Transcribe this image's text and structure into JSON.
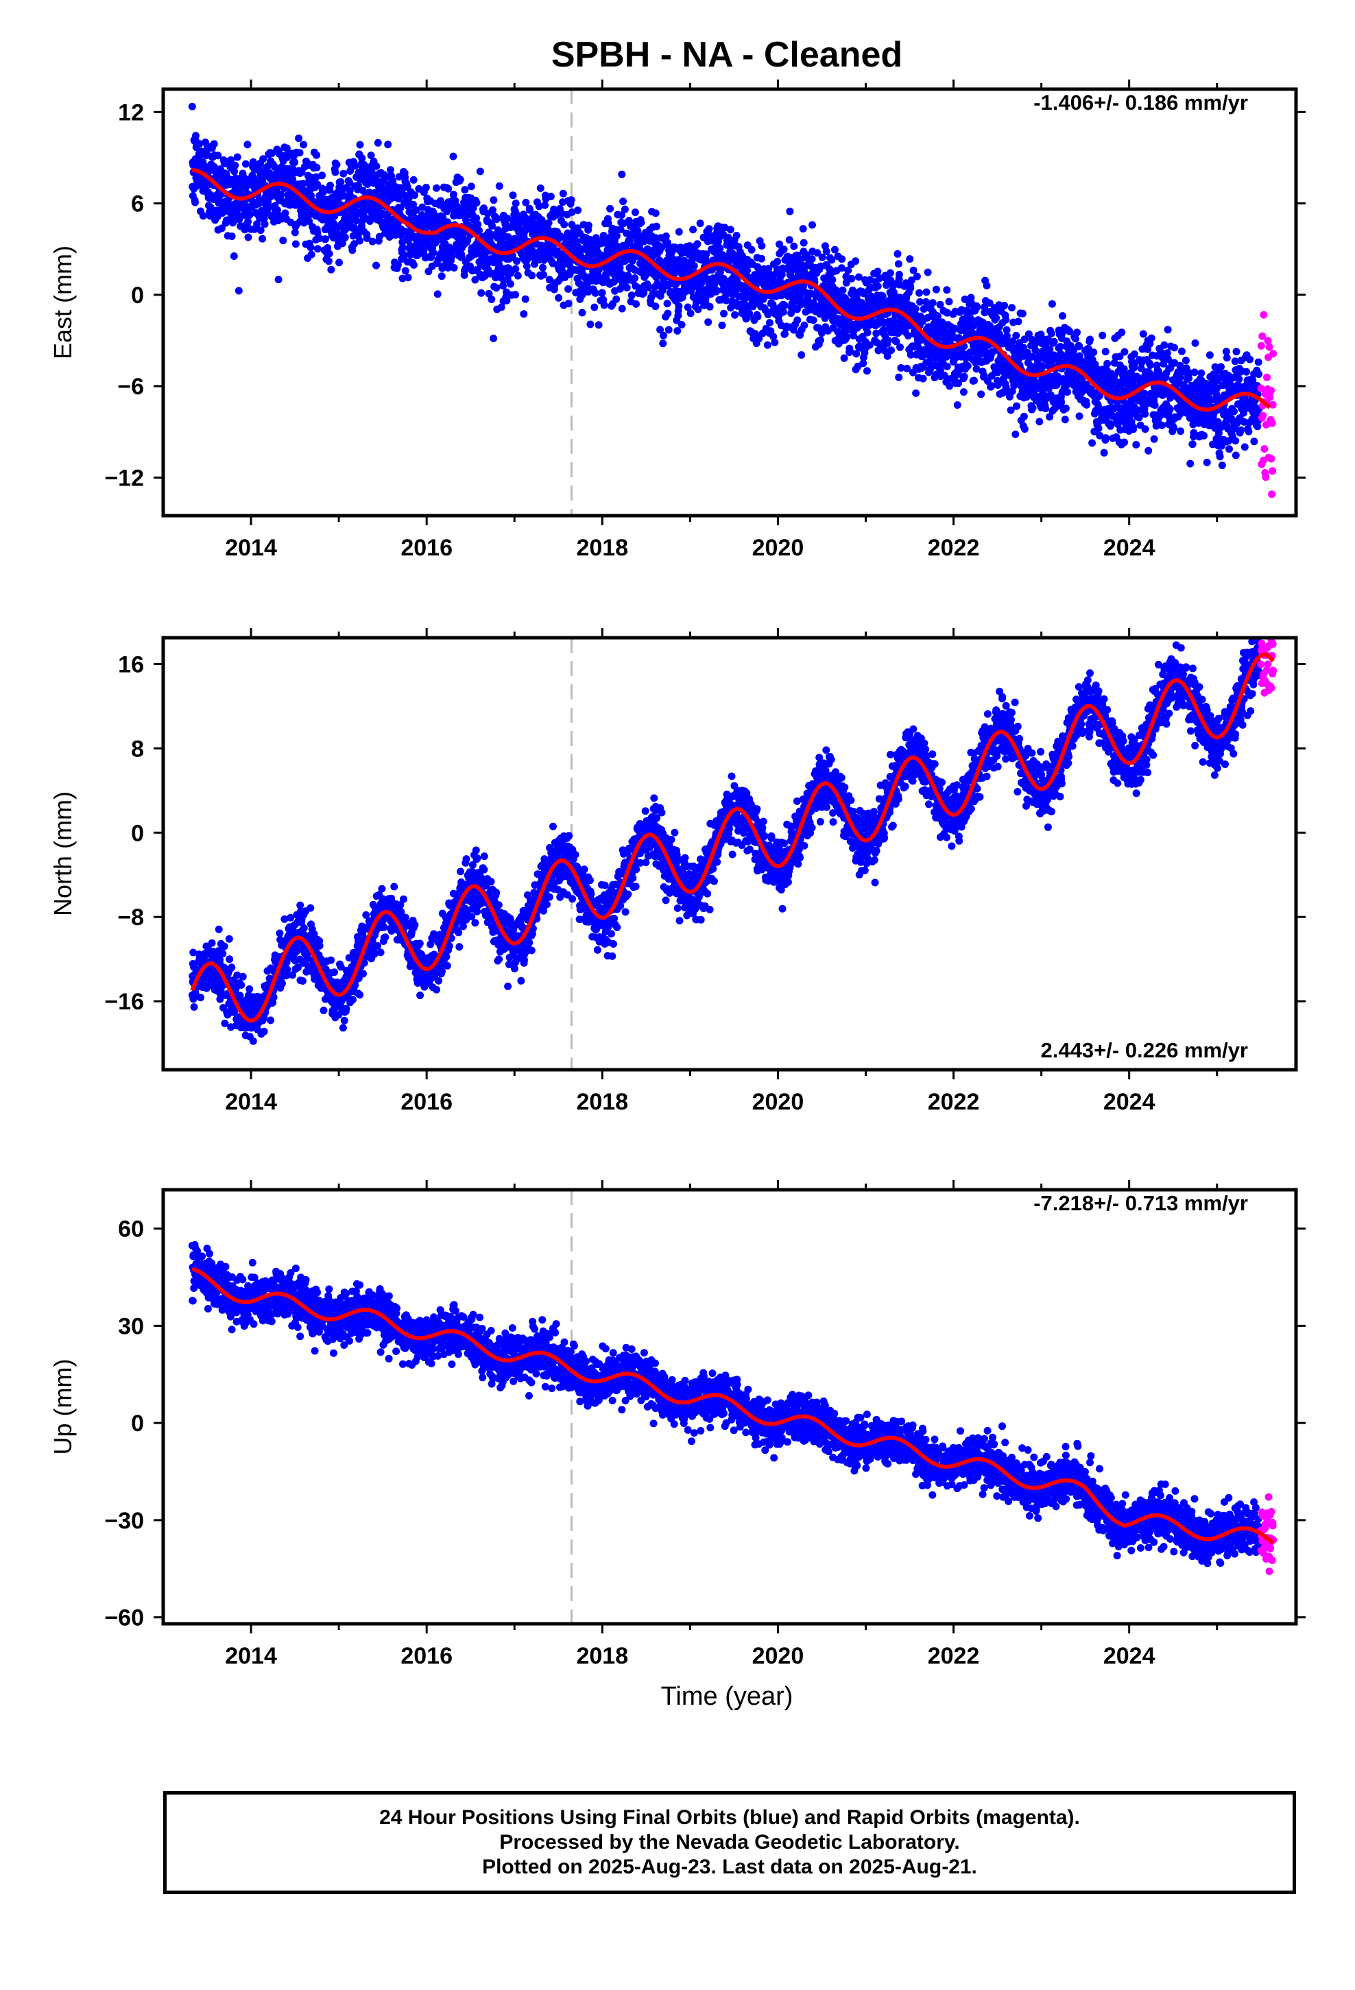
{
  "title": "SPBH  - NA - Cleaned",
  "xlabel": "Time (year)",
  "footer": {
    "line1": "24 Hour Positions Using Final Orbits (blue) and Rapid Orbits (magenta).",
    "line2": "Processed by the Nevada Geodetic Laboratory.",
    "line3": "Plotted on 2025-Aug-23. Last data on 2025-Aug-21."
  },
  "colors": {
    "final_orbits": "#0000ff",
    "rapid_orbits": "#ff00ff",
    "model_fit": "#ff0000",
    "event_line": "#bbbbbb"
  },
  "chart_data": [
    {
      "type": "scatter",
      "component": "East",
      "ylabel": "East (mm)",
      "rate_label": "-1.406+/- 0.186 mm/yr",
      "rate_position": "top-right",
      "xlim": [
        2013.0,
        2025.9
      ],
      "ylim": [
        -14.5,
        13.5
      ],
      "yticks": [
        12,
        6,
        0,
        -6,
        -12
      ],
      "xticks": [
        2014,
        2016,
        2018,
        2020,
        2022,
        2024
      ],
      "event_line_x": 2017.65,
      "model": {
        "intercept": 7.5,
        "start": 2013.33,
        "segments": [
          {
            "from": 2013.33,
            "to": 2015.8,
            "rate": -0.9
          },
          {
            "from": 2015.8,
            "to": 2016.1,
            "rate": -4.0
          },
          {
            "from": 2016.1,
            "to": 2020.0,
            "rate": -0.85
          },
          {
            "from": 2020.0,
            "to": 2023.6,
            "rate": -1.85
          },
          {
            "from": 2023.6,
            "to": 2025.6,
            "rate": -0.75
          }
        ],
        "annual_amp": 0.7,
        "annual_phase": 0.1,
        "scatter_sd": 1.5
      },
      "series": [
        {
          "name": "Final Orbits",
          "x_range": [
            2013.33,
            2025.48
          ],
          "color": "#0000ff"
        },
        {
          "name": "Rapid Orbits",
          "x_range": [
            2025.5,
            2025.64
          ],
          "color": "#ff00ff"
        }
      ]
    },
    {
      "type": "scatter",
      "component": "North",
      "ylabel": "North (mm)",
      "rate_label": "2.443+/- 0.226 mm/yr",
      "rate_position": "bottom-right",
      "xlim": [
        2013.0,
        2025.9
      ],
      "ylim": [
        -22.5,
        18.5
      ],
      "yticks": [
        16,
        8,
        0,
        -8,
        -16
      ],
      "xticks": [
        2014,
        2016,
        2018,
        2020,
        2022,
        2024
      ],
      "event_line_x": 2017.65,
      "model": {
        "intercept": -16.2,
        "start": 2013.33,
        "segments": [
          {
            "from": 2013.33,
            "to": 2025.64,
            "rate": 2.443
          }
        ],
        "annual_amp": 3.3,
        "annual_phase": 0.27,
        "scatter_sd": 1.3
      },
      "series": [
        {
          "name": "Final Orbits",
          "x_range": [
            2013.33,
            2025.48
          ],
          "color": "#0000ff"
        },
        {
          "name": "Rapid Orbits",
          "x_range": [
            2025.5,
            2025.64
          ],
          "color": "#ff00ff"
        }
      ]
    },
    {
      "type": "scatter",
      "component": "Up",
      "ylabel": "Up (mm)",
      "rate_label": "-7.218+/- 0.713 mm/yr",
      "rate_position": "top-right",
      "xlim": [
        2013.0,
        2025.9
      ],
      "ylim": [
        -62,
        72
      ],
      "yticks": [
        60,
        30,
        0,
        -30,
        -60
      ],
      "xticks": [
        2014,
        2016,
        2018,
        2020,
        2022,
        2024
      ],
      "event_line_x": 2017.65,
      "model": {
        "intercept": 45,
        "start": 2013.33,
        "segments": [
          {
            "from": 2013.33,
            "to": 2014.0,
            "rate": -9.0
          },
          {
            "from": 2014.0,
            "to": 2015.5,
            "rate": -5.0
          },
          {
            "from": 2015.5,
            "to": 2016.6,
            "rate": -7.0
          },
          {
            "from": 2016.6,
            "to": 2018.6,
            "rate": -6.5
          },
          {
            "from": 2018.6,
            "to": 2022.6,
            "rate": -6.6
          },
          {
            "from": 2022.6,
            "to": 2023.5,
            "rate": -6.5
          },
          {
            "from": 2023.5,
            "to": 2023.95,
            "rate": -18.0
          },
          {
            "from": 2023.95,
            "to": 2025.64,
            "rate": -4.0
          }
        ],
        "annual_amp": 2.6,
        "annual_phase": 0.1,
        "scatter_sd": 3.6
      },
      "series": [
        {
          "name": "Final Orbits",
          "x_range": [
            2013.33,
            2025.48
          ],
          "color": "#0000ff"
        },
        {
          "name": "Rapid Orbits",
          "x_range": [
            2025.5,
            2025.64
          ],
          "color": "#ff00ff"
        }
      ]
    }
  ]
}
